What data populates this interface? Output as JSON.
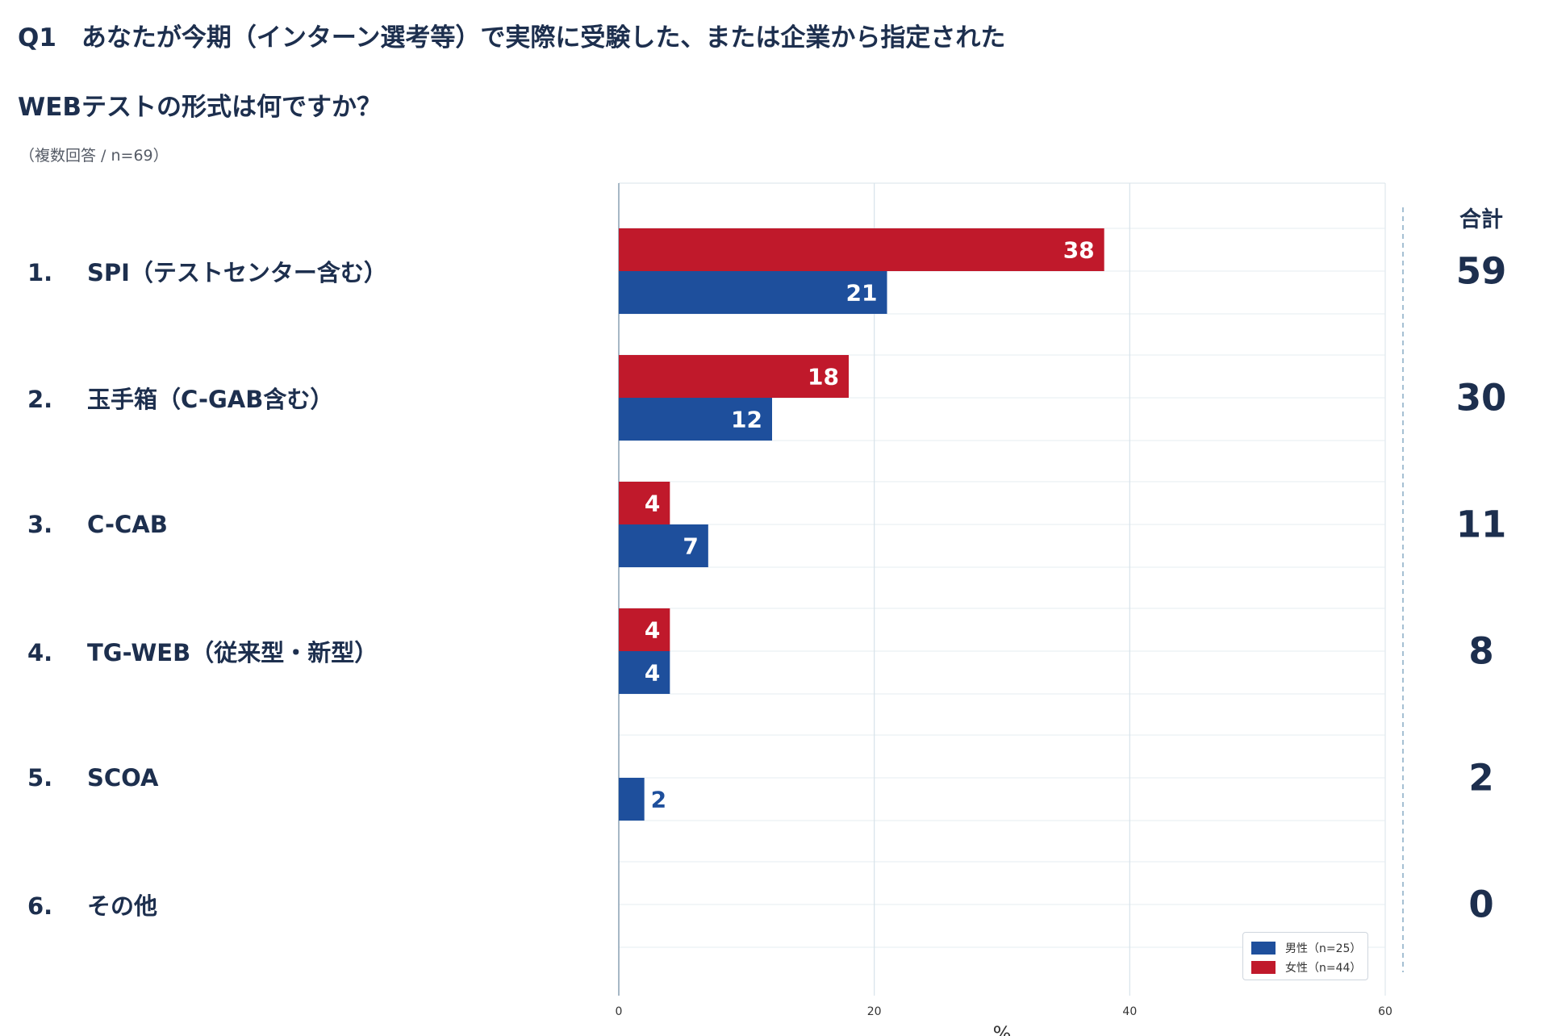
{
  "header": {
    "title_line1": "Q1　あなたが今期（インターン選考等）で実際に受験した、または企業から指定された",
    "title_line2": "WEBテストの形式は何ですか？",
    "note": "（複数回答 / n=69）",
    "total_label": "合計"
  },
  "colors": {
    "male": "#1e4f9c",
    "female": "#c0192b",
    "text": "#1d2f4e",
    "grid": "#d8e3ea"
  },
  "chart_data": {
    "type": "bar",
    "orientation": "horizontal",
    "categories": [
      {
        "num": "1.",
        "label": "SPI（テストセンター含む）"
      },
      {
        "num": "2.",
        "label": "玉手箱（C-GAB含む）"
      },
      {
        "num": "3.",
        "label": "C-CAB"
      },
      {
        "num": "4.",
        "label": "TG-WEB（従来型・新型）"
      },
      {
        "num": "5.",
        "label": "SCOA"
      },
      {
        "num": "6.",
        "label": "その他"
      }
    ],
    "series": [
      {
        "name": "女性（n=44）",
        "key": "female",
        "values": [
          38,
          18,
          4,
          4,
          0,
          0
        ]
      },
      {
        "name": "男性（n=25）",
        "key": "male",
        "values": [
          21,
          12,
          7,
          4,
          2,
          0
        ]
      }
    ],
    "totals": [
      "59",
      "30",
      "11",
      "8",
      "2",
      "0"
    ],
    "xlabel": "%",
    "xlim": [
      0,
      60
    ],
    "xticks": [
      "0",
      "20",
      "40",
      "60"
    ],
    "grid": true,
    "legend": {
      "placement": "bottom-right",
      "entries": [
        "男性（n=25）",
        "女性（n=44）"
      ]
    }
  }
}
